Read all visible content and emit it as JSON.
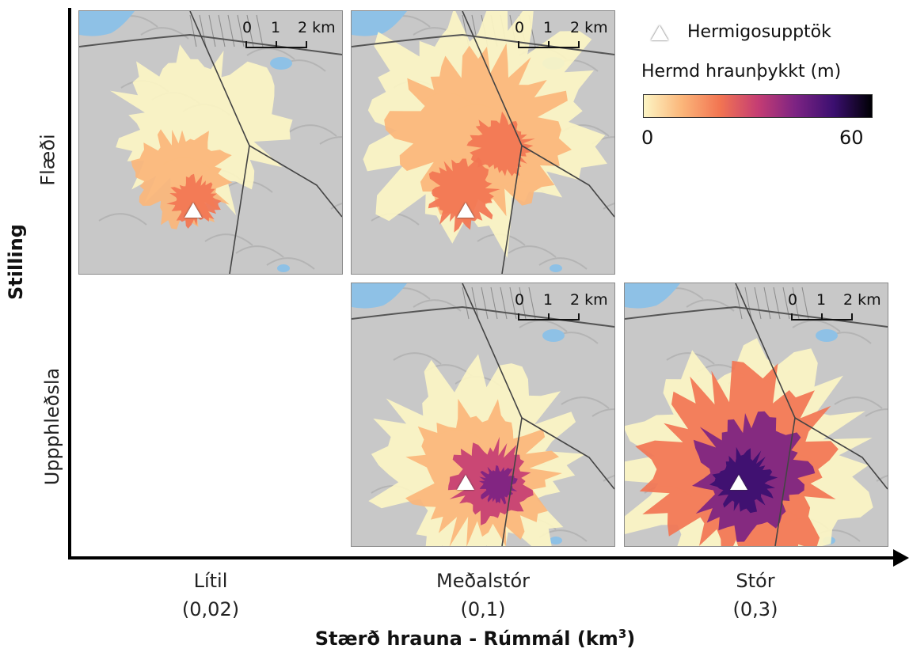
{
  "x_axis": {
    "title_main": "Stærð hrauna - Rúmmál (km",
    "title_sup": "3",
    "title_end": ")",
    "categories": [
      {
        "name": "Lítil",
        "value": "(0,02)"
      },
      {
        "name": "Meðalstór",
        "value": "(0,1)"
      },
      {
        "name": "Stór",
        "value": "(0,3)"
      }
    ]
  },
  "y_axis": {
    "title": "Stilling",
    "rows": [
      "Flæði",
      "Uppphleðsla"
    ]
  },
  "scale": {
    "tick0": "0",
    "tick1": "1",
    "tick2": "2 km"
  },
  "legend": {
    "vent_label": "Hermigosupptök",
    "colorbar_title": "Hermd hraunþykkt (m)",
    "min": "0",
    "max": "60",
    "colors": [
      "#fcf5c4",
      "#fbb67a",
      "#f27552",
      "#c53d73",
      "#7c2383",
      "#3b0f70",
      "#000004"
    ]
  },
  "panels": [
    {
      "id": "flow-small",
      "row": "Flæði",
      "size": "Lítil"
    },
    {
      "id": "flow-medium",
      "row": "Flæði",
      "size": "Meðalstór"
    },
    {
      "id": "build-medium",
      "row": "Uppphleðsla",
      "size": "Meðalstór"
    },
    {
      "id": "build-large",
      "row": "Uppphleðsla",
      "size": "Stór"
    }
  ]
}
